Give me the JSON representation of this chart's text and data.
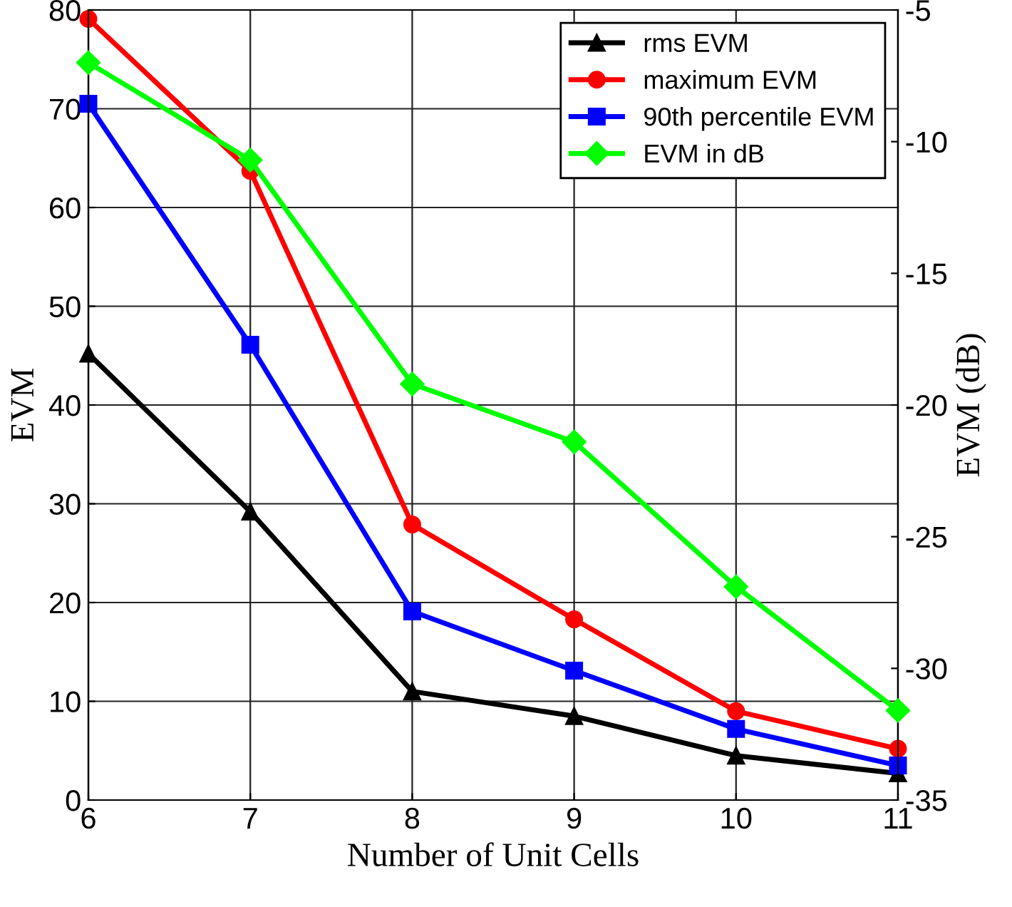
{
  "chart_data": {
    "type": "line",
    "xlabel": "Number of Unit Cells",
    "ylabel": "EVM",
    "y2label": "EVM (dB)",
    "x": [
      6,
      7,
      8,
      9,
      10,
      11
    ],
    "series": [
      {
        "name": "rms EVM",
        "color": "#000000",
        "marker": "triangle",
        "values": [
          45.2,
          29.2,
          11.0,
          8.5,
          4.5,
          2.7
        ]
      },
      {
        "name": "maximum EVM",
        "color": "#ff0000",
        "marker": "circle",
        "values": [
          79.1,
          63.7,
          27.9,
          18.3,
          9.0,
          5.2
        ]
      },
      {
        "name": "90th percentile EVM",
        "color": "#0000ff",
        "marker": "square",
        "values": [
          70.5,
          46.1,
          19.1,
          13.1,
          7.2,
          3.5
        ]
      },
      {
        "name": "EVM in dB",
        "color": "#00ff00",
        "marker": "diamond",
        "axis": "y2",
        "values": [
          -7.0,
          -10.7,
          -19.2,
          -21.4,
          -26.9,
          -31.6
        ]
      }
    ],
    "xlim": [
      6,
      11
    ],
    "xticks": [
      6,
      7,
      8,
      9,
      10,
      11
    ],
    "ylim": [
      0,
      80
    ],
    "yticks": [
      0,
      10,
      20,
      30,
      40,
      50,
      60,
      70,
      80
    ],
    "y2lim": [
      -35,
      -5
    ],
    "y2ticks": [
      -35,
      -30,
      -25,
      -20,
      -15,
      -10,
      -5
    ],
    "grid": true,
    "legend": "top right",
    "line_style": "solid"
  }
}
